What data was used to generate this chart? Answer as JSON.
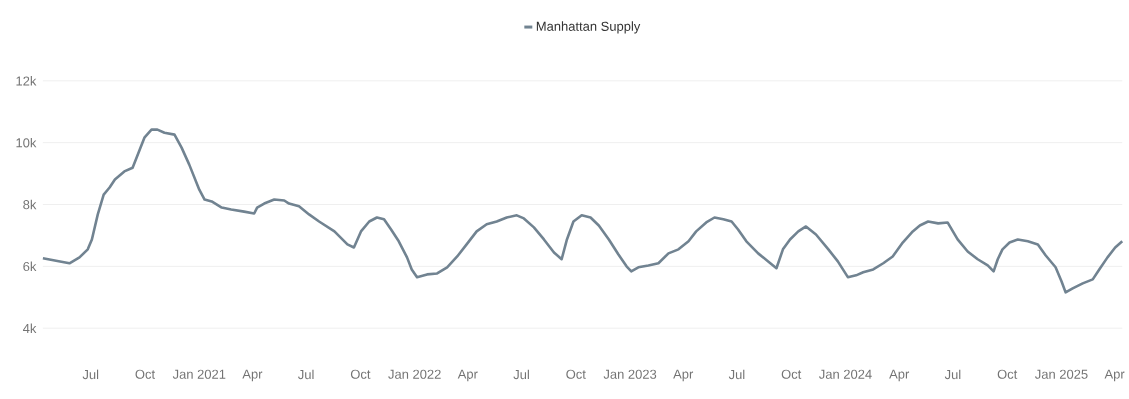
{
  "chart_data": {
    "type": "line",
    "legend": "top",
    "grid": "y",
    "marker": "none",
    "line_style": "solid",
    "xlim": [
      "2020-04-11",
      "2025-04-14"
    ],
    "ylim": [
      4000,
      12000
    ],
    "yticks": [
      {
        "value": 4000,
        "label": "4k"
      },
      {
        "value": 6000,
        "label": "6k"
      },
      {
        "value": 8000,
        "label": "8k"
      },
      {
        "value": 10000,
        "label": "10k"
      },
      {
        "value": 12000,
        "label": "12k"
      }
    ],
    "xticks": [
      {
        "value": "2020-07-01",
        "label": "Jul"
      },
      {
        "value": "2020-10-01",
        "label": "Oct"
      },
      {
        "value": "2021-01-01",
        "label": "Jan 2021"
      },
      {
        "value": "2021-04-01",
        "label": "Apr"
      },
      {
        "value": "2021-07-01",
        "label": "Jul"
      },
      {
        "value": "2021-10-01",
        "label": "Oct"
      },
      {
        "value": "2022-01-01",
        "label": "Jan 2022"
      },
      {
        "value": "2022-04-01",
        "label": "Apr"
      },
      {
        "value": "2022-07-01",
        "label": "Jul"
      },
      {
        "value": "2022-10-01",
        "label": "Oct"
      },
      {
        "value": "2023-01-01",
        "label": "Jan 2023"
      },
      {
        "value": "2023-04-01",
        "label": "Apr"
      },
      {
        "value": "2023-07-01",
        "label": "Jul"
      },
      {
        "value": "2023-10-01",
        "label": "Oct"
      },
      {
        "value": "2024-01-01",
        "label": "Jan 2024"
      },
      {
        "value": "2024-04-01",
        "label": "Apr"
      },
      {
        "value": "2024-07-01",
        "label": "Jul"
      },
      {
        "value": "2024-10-01",
        "label": "Oct"
      },
      {
        "value": "2025-01-01",
        "label": "Jan 2025"
      },
      {
        "value": "2025-04-01",
        "label": "Apr"
      }
    ],
    "x": [
      "2020-04-11",
      "2020-05-10",
      "2020-05-26",
      "2020-06-12",
      "2020-06-26",
      "2020-07-03",
      "2020-07-13",
      "2020-07-23",
      "2020-08-02",
      "2020-08-11",
      "2020-08-19",
      "2020-08-27",
      "2020-09-10",
      "2020-09-22",
      "2020-09-30",
      "2020-10-12",
      "2020-10-22",
      "2020-11-03",
      "2020-11-20",
      "2020-12-02",
      "2020-12-15",
      "2021-01-01",
      "2021-01-10",
      "2021-01-22",
      "2021-02-08",
      "2021-02-24",
      "2021-03-18",
      "2021-04-04",
      "2021-04-09",
      "2021-04-21",
      "2021-05-08",
      "2021-05-25",
      "2021-06-02",
      "2021-06-19",
      "2021-07-06",
      "2021-07-23",
      "2021-08-18",
      "2021-09-09",
      "2021-09-20",
      "2021-10-02",
      "2021-10-16",
      "2021-10-29",
      "2021-11-10",
      "2021-11-22",
      "2021-12-05",
      "2021-12-19",
      "2021-12-27",
      "2022-01-05",
      "2022-01-22",
      "2022-02-08",
      "2022-02-25",
      "2022-03-14",
      "2022-03-30",
      "2022-04-16",
      "2022-05-03",
      "2022-05-20",
      "2022-06-06",
      "2022-06-23",
      "2022-07-05",
      "2022-07-22",
      "2022-08-08",
      "2022-08-25",
      "2022-09-07",
      "2022-09-16",
      "2022-09-27",
      "2022-10-11",
      "2022-10-26",
      "2022-11-09",
      "2022-11-26",
      "2022-12-12",
      "2022-12-26",
      "2023-01-03",
      "2023-01-15",
      "2023-02-01",
      "2023-02-18",
      "2023-03-07",
      "2023-03-24",
      "2023-04-10",
      "2023-04-23",
      "2023-05-10",
      "2023-05-24",
      "2023-06-08",
      "2023-06-22",
      "2023-07-03",
      "2023-07-17",
      "2023-08-06",
      "2023-08-23",
      "2023-09-06",
      "2023-09-17",
      "2023-09-29",
      "2023-10-13",
      "2023-10-26",
      "2023-11-12",
      "2023-12-03",
      "2023-12-19",
      "2024-01-05",
      "2024-01-19",
      "2024-01-31",
      "2024-02-17",
      "2024-03-05",
      "2024-03-21",
      "2024-04-07",
      "2024-04-24",
      "2024-05-06",
      "2024-05-20",
      "2024-06-06",
      "2024-06-22",
      "2024-07-09",
      "2024-07-26",
      "2024-08-12",
      "2024-08-29",
      "2024-09-08",
      "2024-09-15",
      "2024-09-23",
      "2024-10-05",
      "2024-10-19",
      "2024-11-05",
      "2024-11-22",
      "2024-12-05",
      "2024-12-22",
      "2025-01-01",
      "2025-01-08",
      "2025-01-20",
      "2025-02-06",
      "2025-02-23",
      "2025-03-06",
      "2025-03-20",
      "2025-04-02",
      "2025-04-14"
    ],
    "series": [
      {
        "name": "Manhattan Supply",
        "color": "#718391",
        "values": [
          6260,
          6160,
          6100,
          6290,
          6550,
          6870,
          7680,
          8320,
          8550,
          8810,
          8940,
          9070,
          9190,
          9770,
          10160,
          10420,
          10420,
          10320,
          10260,
          9840,
          9290,
          8480,
          8160,
          8100,
          7900,
          7840,
          7770,
          7710,
          7900,
          8030,
          8160,
          8130,
          8030,
          7940,
          7680,
          7450,
          7130,
          6710,
          6610,
          7130,
          7450,
          7580,
          7520,
          7190,
          6810,
          6290,
          5900,
          5650,
          5740,
          5770,
          5970,
          6320,
          6710,
          7130,
          7360,
          7450,
          7580,
          7650,
          7550,
          7260,
          6870,
          6450,
          6230,
          6870,
          7450,
          7650,
          7580,
          7320,
          6870,
          6390,
          6000,
          5840,
          5970,
          6030,
          6100,
          6420,
          6550,
          6810,
          7130,
          7420,
          7580,
          7520,
          7450,
          7190,
          6810,
          6420,
          6160,
          5940,
          6550,
          6870,
          7130,
          7290,
          7030,
          6550,
          6160,
          5650,
          5710,
          5810,
          5900,
          6100,
          6320,
          6770,
          7130,
          7320,
          7450,
          7390,
          7420,
          6870,
          6480,
          6230,
          6030,
          5840,
          6230,
          6550,
          6770,
          6870,
          6810,
          6710,
          6360,
          5970,
          5520,
          5160,
          5290,
          5450,
          5580,
          5900,
          6290,
          6610,
          6810
        ]
      }
    ]
  }
}
